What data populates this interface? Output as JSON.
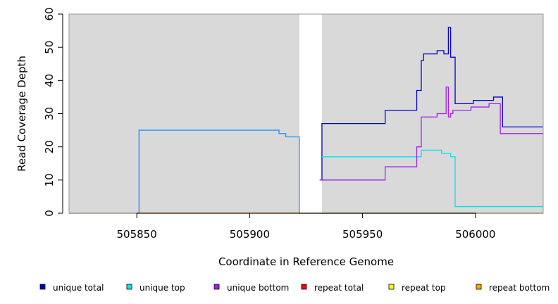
{
  "chart_data": {
    "type": "line",
    "title": "",
    "xlabel": "Coordinate in Reference Genome",
    "ylabel": "Read Coverage Depth",
    "xlim": [
      505820,
      506030
    ],
    "ylim": [
      0,
      60
    ],
    "x_ticks": [
      505850,
      505900,
      505950,
      506000
    ],
    "y_ticks": [
      0,
      10,
      20,
      30,
      40,
      50,
      60
    ],
    "x_tick_labels": [
      "505850",
      "505900",
      "505950",
      "506000"
    ],
    "y_tick_labels": [
      "0",
      "10",
      "20",
      "30",
      "40",
      "50",
      "60"
    ],
    "background_color": "#d9d9d9",
    "gap_shading": [
      [
        505922,
        505932
      ]
    ],
    "step": true,
    "legend_position": "bottom",
    "series": [
      {
        "name": "unique total",
        "color": "#0000cd",
        "x": [
          505931,
          505932,
          505960,
          505974,
          505976,
          505977,
          505983,
          505986,
          505988,
          505989,
          505991,
          505999,
          506008,
          506012,
          506030
        ],
        "values": [
          10,
          27,
          31,
          37,
          46,
          48,
          49,
          48,
          56,
          47,
          33,
          34,
          35,
          26,
          26
        ]
      },
      {
        "name": "unique top",
        "color": "#00e5ee",
        "x": [
          505932,
          505976,
          505985,
          505989,
          505991,
          506030
        ],
        "values": [
          17,
          19,
          18,
          17,
          2,
          2
        ]
      },
      {
        "name": "unique bottom",
        "color": "#a020f0",
        "x": [
          505931,
          505960,
          505974,
          505976,
          505983,
          505987,
          505988,
          505989,
          505990,
          505998,
          506006,
          506011,
          506030
        ],
        "values": [
          10,
          14,
          20,
          29,
          30,
          38,
          29,
          30,
          31,
          32,
          33,
          24,
          24
        ]
      },
      {
        "name": "repeat total",
        "color": "#ff0000",
        "x": [
          505820,
          506030
        ],
        "values": [
          0,
          0
        ]
      },
      {
        "name": "repeat top",
        "color": "#ffff00",
        "x": [
          505820,
          506030
        ],
        "values": [
          0,
          0
        ]
      },
      {
        "name": "repeat bottom",
        "color": "#ffa500",
        "x": [
          505931,
          506030
        ],
        "values": [
          0,
          0
        ]
      },
      {
        "color": "#1e90ff",
        "x": [
          505820,
          505851,
          505913,
          505916,
          505922
        ],
        "values": [
          0,
          25,
          24,
          23,
          0
        ]
      }
    ]
  }
}
